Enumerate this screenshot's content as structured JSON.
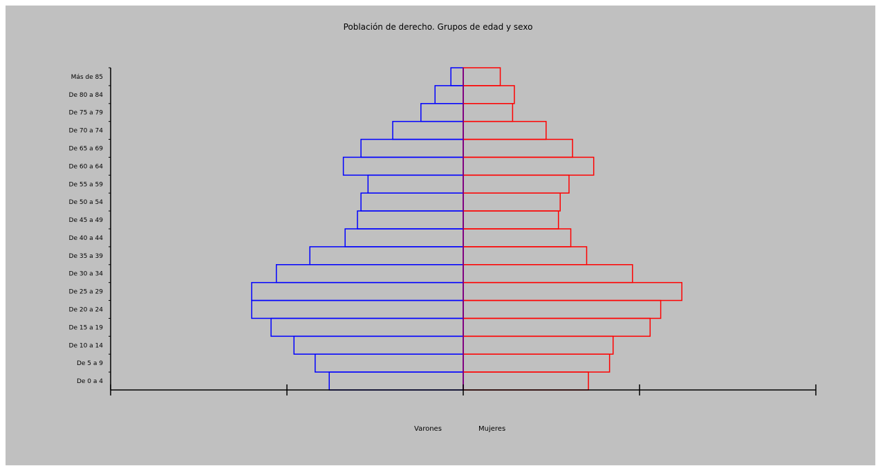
{
  "chart_data": {
    "type": "bar",
    "title": "Población de derecho. Grupos de edad y sexo",
    "categories": [
      "De 0 a 4",
      "De 5 a 9",
      "De 10 a 14",
      "De 15 a 19",
      "De 20 a 24",
      "De 25 a 29",
      "De 30 a 34",
      "De 35 a 39",
      "De 40 a 44",
      "De 45 a 49",
      "De 50 a 54",
      "De 55 a 59",
      "De 60 a 64",
      "De 65 a 69",
      "De 70 a 74",
      "De 75 a 79",
      "De 80 a 84",
      "Más de 85"
    ],
    "series": [
      {
        "name": "Varones",
        "color": "#0000ff",
        "values": [
          3.8,
          4.2,
          4.8,
          5.45,
          6.0,
          6.0,
          5.3,
          4.35,
          3.35,
          3.0,
          2.9,
          2.7,
          3.4,
          2.9,
          2.0,
          1.2,
          0.8,
          0.35
        ]
      },
      {
        "name": "Mujeres",
        "color": "#ff0000",
        "values": [
          3.55,
          4.15,
          4.25,
          5.3,
          5.6,
          6.2,
          4.8,
          3.5,
          3.05,
          2.7,
          2.75,
          3.0,
          3.7,
          3.1,
          2.35,
          1.4,
          1.45,
          1.05
        ]
      }
    ],
    "xlim": [
      -10,
      10
    ],
    "grid": false,
    "legend_position": "bottom-center"
  },
  "colors": {
    "background": "#c0c0c0",
    "axis": "#000000",
    "center_line": "#800080"
  }
}
